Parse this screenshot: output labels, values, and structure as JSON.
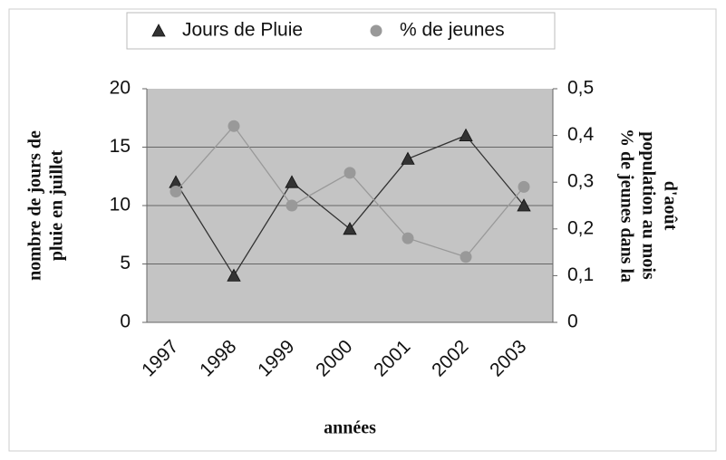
{
  "chart_data": {
    "type": "line",
    "categories": [
      "1997",
      "1998",
      "1999",
      "2000",
      "2001",
      "2002",
      "2003"
    ],
    "series": [
      {
        "name": "Jours de Pluie",
        "color": "#333333",
        "marker": "triangle",
        "values": [
          12,
          4,
          12,
          8,
          14,
          16,
          10
        ]
      },
      {
        "name": "% de jeunes",
        "color": "#999999",
        "marker": "circle",
        "axis": "y2",
        "values": [
          0.28,
          0.42,
          0.25,
          0.32,
          0.18,
          0.14,
          0.29
        ]
      }
    ],
    "xlabel": "années",
    "ylabel": [
      "nombre de jours de",
      "pluie en juillet"
    ],
    "y2label": [
      "% de jeunes dans la",
      "population au mois",
      "d'août"
    ],
    "ylim": [
      0,
      20
    ],
    "yticks": [
      0,
      5,
      10,
      15,
      20
    ],
    "y2lim": [
      0,
      0.5
    ],
    "y2ticks": [
      0,
      {
        "value": 0.1,
        "label": "0,1"
      },
      {
        "value": 0.2,
        "label": "0,2"
      },
      {
        "value": 0.3,
        "label": "0,3"
      },
      {
        "value": 0.4,
        "label": "0,4"
      },
      {
        "value": 0.5,
        "label": "0,5"
      }
    ],
    "grid": true,
    "legend": "top"
  }
}
